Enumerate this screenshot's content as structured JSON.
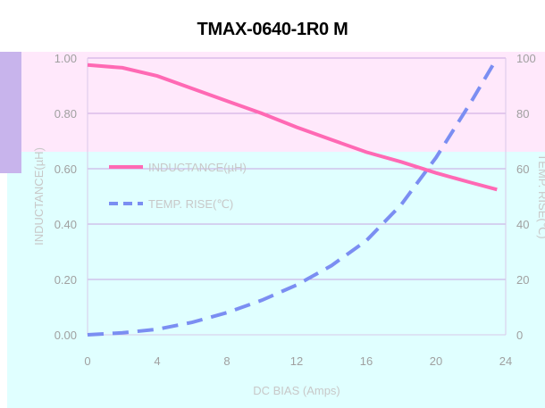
{
  "chart_data": {
    "type": "line",
    "title": "TMAX-0640-1R0 M",
    "xlabel": "DC BIAS (Amps)",
    "ylabel": "INDUCTANCE(µH)",
    "y2label": "TEMP. RISE(℃)",
    "x_ticks": [
      "0",
      "4",
      "8",
      "12",
      "16",
      "20",
      "24"
    ],
    "y_ticks": [
      "0.00",
      "0.20",
      "0.40",
      "0.60",
      "0.80",
      "1.00"
    ],
    "y2_ticks": [
      "0",
      "20",
      "40",
      "60",
      "80",
      "100"
    ],
    "xlim": [
      0,
      24
    ],
    "ylim": [
      0,
      1.0
    ],
    "y2lim": [
      0,
      100
    ],
    "grid": true,
    "legend_position": "left",
    "series": [
      {
        "name": "INDUCTANCE(µH)",
        "axis": "left",
        "style": "solid",
        "x": [
          0,
          2,
          4,
          6,
          8,
          10,
          12,
          14,
          16,
          18,
          20,
          22,
          23.5
        ],
        "y": [
          0.975,
          0.965,
          0.935,
          0.89,
          0.845,
          0.8,
          0.75,
          0.705,
          0.66,
          0.625,
          0.585,
          0.55,
          0.525
        ]
      },
      {
        "name": "TEMP. RISE(℃)",
        "axis": "right",
        "style": "dashed",
        "x": [
          0,
          2,
          4,
          6,
          8,
          10,
          12,
          14,
          16,
          18,
          20,
          22,
          23.5
        ],
        "y": [
          0,
          0.7,
          2,
          4.5,
          8,
          12.5,
          18,
          25,
          34,
          47,
          64,
          84,
          100
        ]
      }
    ],
    "colors": {
      "inductance": "#ff69b4",
      "temp_rise": "#7b8ef2",
      "plot_upper_bg": "#ffe8fb",
      "plot_lower_bg": "#e0ffff",
      "gridline": "#c8a6e0",
      "left_accent": "#c8b4ec"
    }
  }
}
